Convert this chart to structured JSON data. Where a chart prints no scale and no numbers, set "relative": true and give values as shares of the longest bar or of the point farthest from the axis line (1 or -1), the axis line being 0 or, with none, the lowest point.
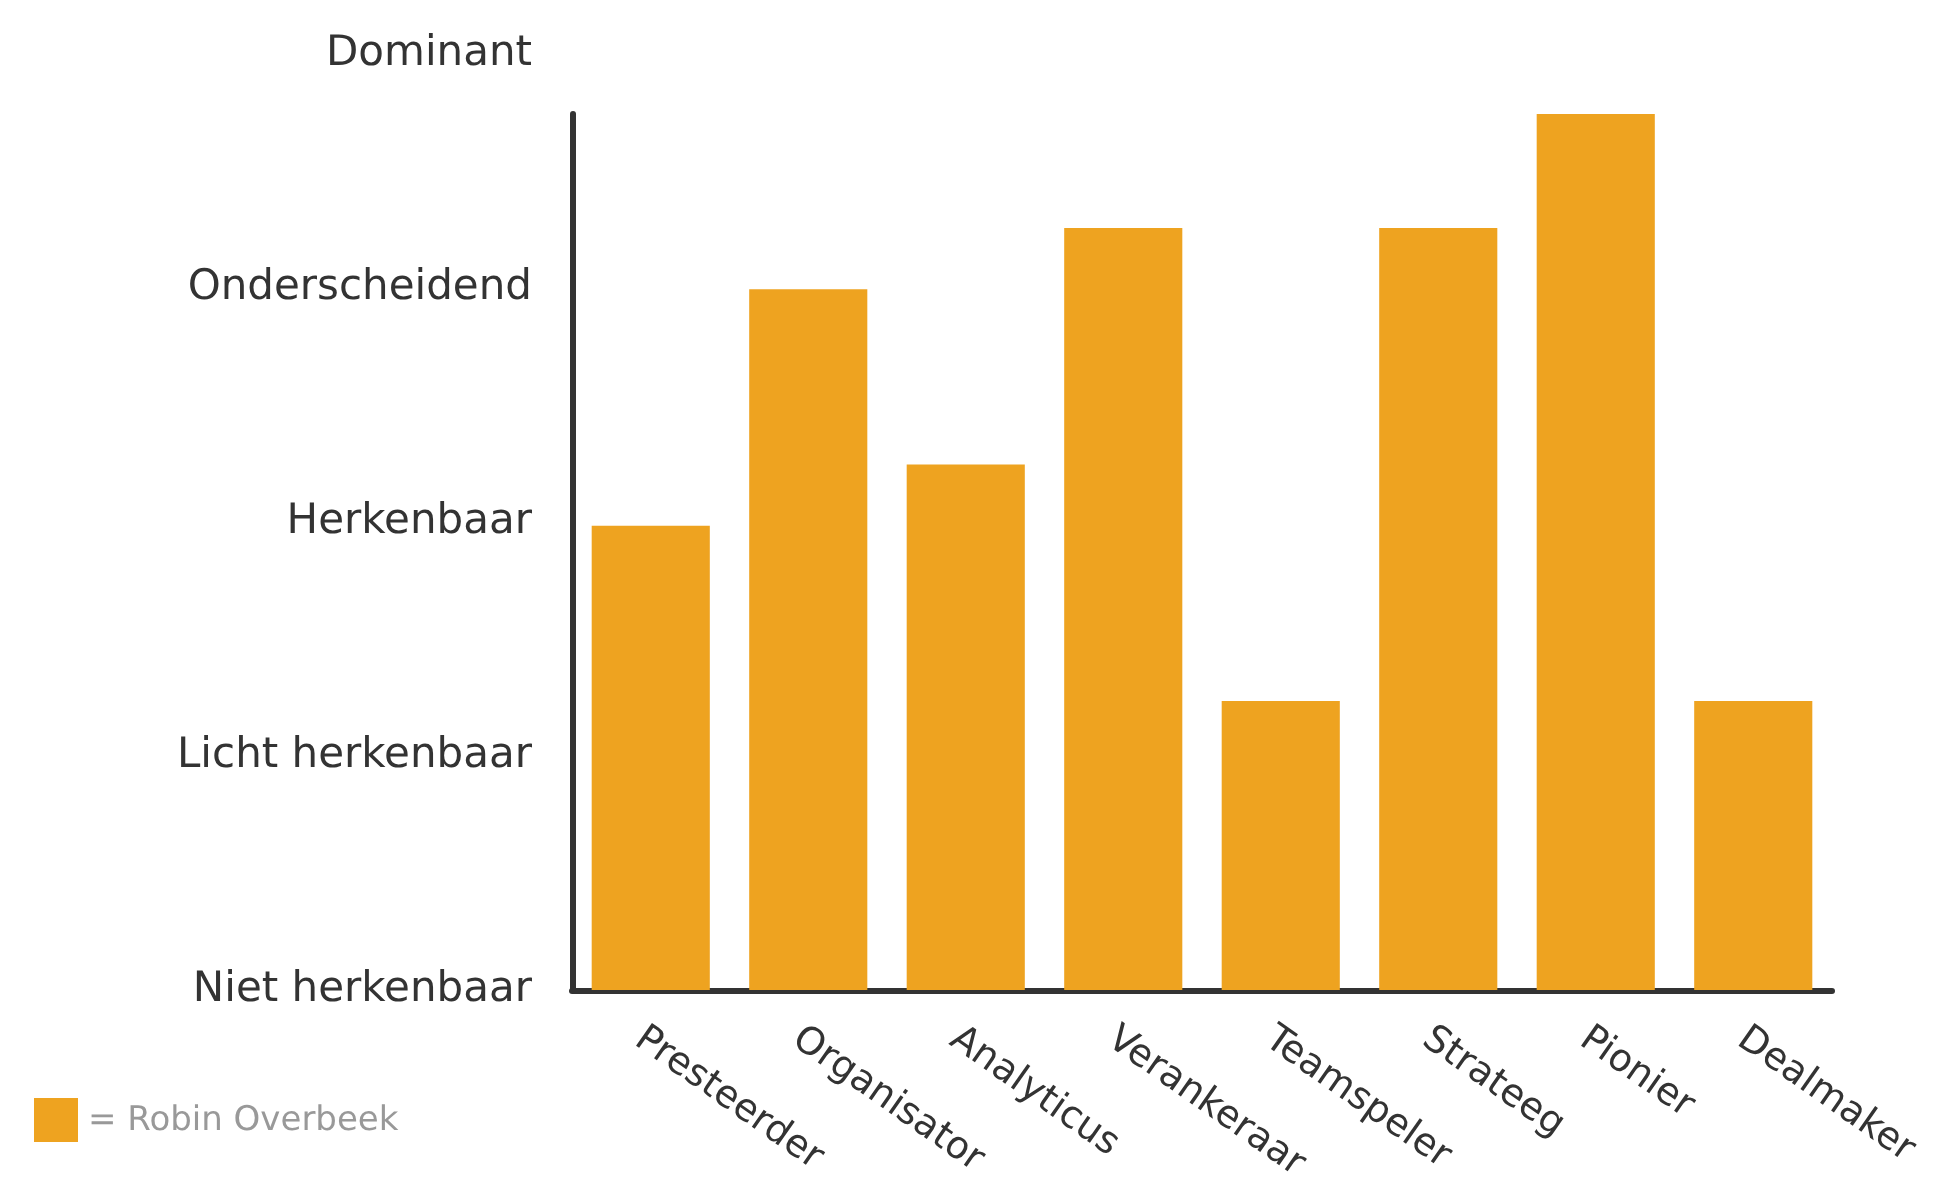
{
  "chart_data": {
    "type": "bar",
    "relative": true,
    "categories": [
      "Presteerder",
      "Organisator",
      "Analyticus",
      "Verankeraar",
      "Teamspeler",
      "Strateeg",
      "Pionier",
      "Dealmaker"
    ],
    "series": [
      {
        "name": "= Robin Overbeek",
        "color": "#eea320",
        "values": [
          0.53,
          0.8,
          0.6,
          0.87,
          0.33,
          0.87,
          1,
          0.33
        ]
      }
    ],
    "annotations": [
      "Niet herkenbaar",
      "Licht herkenbaar",
      "Herkenbaar",
      "Onderscheidend",
      "Dominant"
    ],
    "legend": "bottom left"
  }
}
